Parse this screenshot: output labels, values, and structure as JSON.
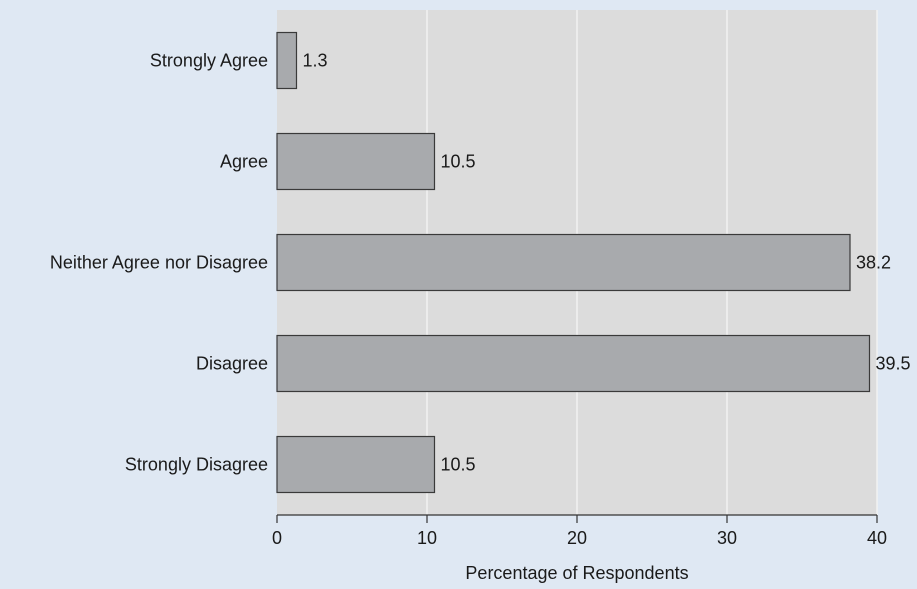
{
  "chart_data": {
    "type": "bar",
    "orientation": "horizontal",
    "categories": [
      "Strongly Agree",
      "Agree",
      "Neither Agree nor Disagree",
      "Disagree",
      "Strongly Disagree"
    ],
    "values": [
      1.3,
      10.5,
      38.2,
      39.5,
      10.5
    ],
    "data_labels": [
      "1.3",
      "10.5",
      "38.2",
      "39.5",
      "10.5"
    ],
    "title": "",
    "xlabel": "Percentage of Respondents",
    "ylabel": "",
    "xlim": [
      0,
      40
    ],
    "xticks": [
      0,
      10,
      20,
      30,
      40
    ],
    "xtick_labels": [
      "0",
      "10",
      "20",
      "30",
      "40"
    ],
    "grid": true,
    "legend": "none",
    "colors": {
      "figure_background": "#dfe8f3",
      "plot_background": "#dcdcdc",
      "bar_fill": "#a8aaad",
      "bar_stroke": "#3a3a3a",
      "grid": "#f2f2f2",
      "axis": "#333333"
    }
  }
}
